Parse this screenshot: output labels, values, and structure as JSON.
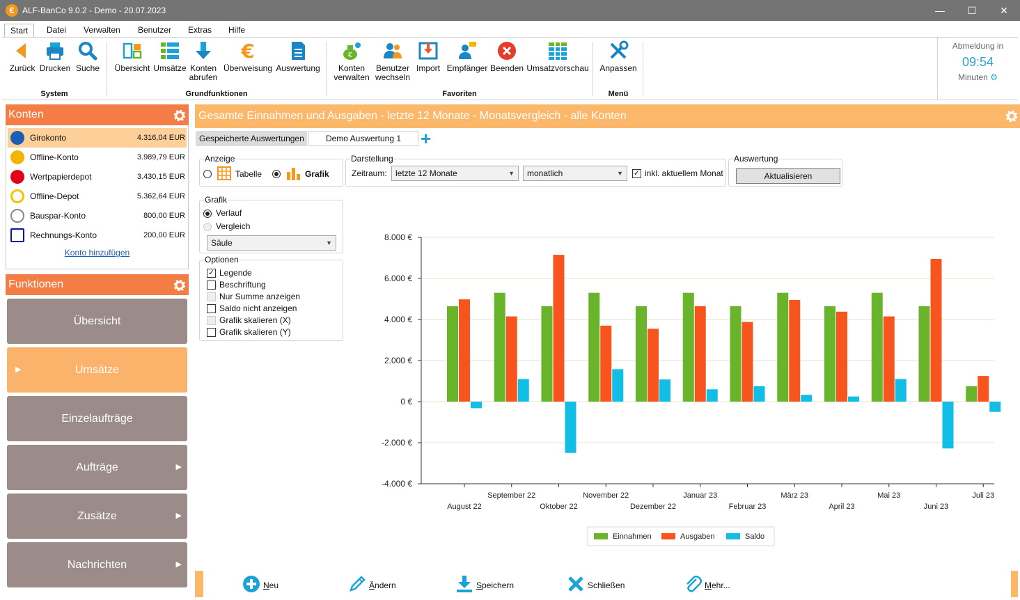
{
  "window": {
    "title": "ALF-BanCo 9.0.2 - Demo  -  20.07.2023",
    "app_icon": "€",
    "controls": [
      "minimize-icon",
      "maximize-icon",
      "close-icon"
    ]
  },
  "menu_tabs": [
    "Start",
    "Datei",
    "Verwalten",
    "Benutzer",
    "Extras",
    "Hilfe"
  ],
  "ribbon": {
    "groups": [
      {
        "label": "System",
        "buttons": [
          {
            "l1": "Zurück",
            "l2": "",
            "icon": "back-arrow-icon"
          },
          {
            "l1": "Drucken",
            "l2": "",
            "icon": "printer-icon"
          },
          {
            "l1": "Suche",
            "l2": "",
            "icon": "search-icon"
          }
        ]
      },
      {
        "label": "Grundfunktionen",
        "buttons": [
          {
            "l1": "Übersicht",
            "l2": "",
            "icon": "overview-icon"
          },
          {
            "l1": "Umsätze",
            "l2": "",
            "icon": "list-icon"
          },
          {
            "l1": "Konten",
            "l2": "abrufen",
            "icon": "download-arrow-icon"
          },
          {
            "l1": "Überweisung",
            "l2": "",
            "icon": "euro-icon"
          },
          {
            "l1": "Auswertung",
            "l2": "",
            "icon": "document-icon"
          }
        ]
      },
      {
        "label": "Favoriten",
        "buttons": [
          {
            "l1": "Konten",
            "l2": "verwalten",
            "icon": "money-bag-icon"
          },
          {
            "l1": "Benutzer",
            "l2": "wechseln",
            "icon": "users-icon"
          },
          {
            "l1": "Import",
            "l2": "",
            "icon": "import-icon"
          },
          {
            "l1": "Empfänger",
            "l2": "",
            "icon": "recipient-icon"
          },
          {
            "l1": "Beenden",
            "l2": "",
            "icon": "exit-icon"
          },
          {
            "l1": "Umsatzvorschau",
            "l2": "",
            "icon": "grid-icon"
          }
        ]
      },
      {
        "label": "Menü",
        "buttons": [
          {
            "l1": "Anpassen",
            "l2": "",
            "icon": "tools-icon"
          }
        ]
      }
    ],
    "abmeldung": {
      "title": "Abmeldung in",
      "time": "09:54",
      "unit": "Minuten"
    }
  },
  "konten": {
    "title": "Konten",
    "items": [
      {
        "name": "Girokonto",
        "balance": "4.316,04 EUR",
        "icon": "volksbank-icon",
        "color": "#1a5fb4"
      },
      {
        "name": "Offline-Konto",
        "balance": "3.989,79 EUR",
        "icon": "offline-bank-icon",
        "color": "#f5b400"
      },
      {
        "name": "Wertpapierdepot",
        "balance": "3.430,15 EUR",
        "icon": "sparkasse-icon",
        "color": "#e2001a"
      },
      {
        "name": "Offline-Depot",
        "balance": "5.362,64 EUR",
        "icon": "depot-icon",
        "color": "#f5c400"
      },
      {
        "name": "Bauspar-Konto",
        "balance": "800,00 EUR",
        "icon": "bank-building-icon",
        "color": "#888888"
      },
      {
        "name": "Rechnungs-Konto",
        "balance": "200,00 EUR",
        "icon": "deutsche-bank-icon",
        "color": "#0018a8"
      }
    ],
    "add_link": "Konto hinzufügen"
  },
  "funktionen": {
    "title": "Funktionen",
    "items": [
      "Übersicht",
      "Umsätze",
      "Einzelaufträge",
      "Aufträge",
      "Zusätze",
      "Nachrichten"
    ]
  },
  "main": {
    "header": "Gesamte Einnahmen und Ausgaben - letzte 12 Monate - Monatsvergleich - alle Konten",
    "saved_tab": "Gespeicherte Auswertungen",
    "demo_tab": "Demo Auswertung 1",
    "anzeige": {
      "title": "Anzeige",
      "tabelle": "Tabelle",
      "grafik": "Grafik",
      "selected": "Grafik"
    },
    "darstellung": {
      "title": "Darstellung",
      "zeitraum_label": "Zeitraum:",
      "zeitraum": "letzte 12 Monate",
      "intervall": "monatlich",
      "inkl": "inkl. aktuellem Monat",
      "inkl_checked": true
    },
    "auswertung": {
      "title": "Auswertung",
      "button": "Aktualisieren"
    },
    "grafik": {
      "title": "Grafik",
      "verlauf": "Verlauf",
      "vergleich": "Vergleich",
      "type": "Säule"
    },
    "optionen": {
      "title": "Optionen",
      "items": [
        {
          "label": "Legende",
          "checked": true,
          "disabled": false
        },
        {
          "label": "Beschriftung",
          "checked": false,
          "disabled": false
        },
        {
          "label": "Nur Summe anzeigen",
          "checked": false,
          "disabled": true
        },
        {
          "label": "Saldo nicht anzeigen",
          "checked": false,
          "disabled": false
        },
        {
          "label": "Grafik skalieren (X)",
          "checked": false,
          "disabled": true
        },
        {
          "label": "Grafik skalieren (Y)",
          "checked": false,
          "disabled": false
        }
      ]
    }
  },
  "chart_data": {
    "type": "bar",
    "categories": [
      "August 22",
      "September 22",
      "Oktober 22",
      "November 22",
      "Dezember 22",
      "Januar 23",
      "Februar 23",
      "März 23",
      "April 23",
      "Mai 23",
      "Juni 23",
      "Juli 23"
    ],
    "series": [
      {
        "name": "Einnahmen",
        "color": "#6ab42c",
        "values": [
          4650,
          5300,
          4650,
          5300,
          4650,
          5300,
          4650,
          5300,
          4650,
          5300,
          4650,
          750
        ]
      },
      {
        "name": "Ausgaben",
        "color": "#f7551d",
        "values": [
          4980,
          4150,
          7150,
          3700,
          3550,
          4650,
          3880,
          4950,
          4380,
          4150,
          6950,
          1250
        ]
      },
      {
        "name": "Saldo",
        "color": "#12bde6",
        "values": [
          -320,
          1100,
          -2500,
          1580,
          1080,
          600,
          750,
          330,
          250,
          1100,
          -2280,
          -500
        ]
      }
    ],
    "yticks": [
      "8.000 €",
      "6.000 €",
      "4.000 €",
      "2.000 €",
      "0 €",
      "-2.000 €",
      "-4.000 €"
    ],
    "ylim": [
      -4000,
      8000
    ],
    "grid": true,
    "legend_position": "bottom"
  },
  "bottom": {
    "actions": [
      {
        "hotkey": "N",
        "rest": "eu",
        "icon": "plus-circle-icon"
      },
      {
        "hotkey": "Ä",
        "rest": "ndern",
        "icon": "pencil-icon"
      },
      {
        "hotkey": "S",
        "rest": "peichern",
        "icon": "save-download-icon"
      },
      {
        "hotkey": "",
        "rest": "Schließen",
        "icon": "close-x-icon"
      },
      {
        "hotkey": "M",
        "rest": "ehr...",
        "icon": "paperclip-icon"
      }
    ]
  }
}
